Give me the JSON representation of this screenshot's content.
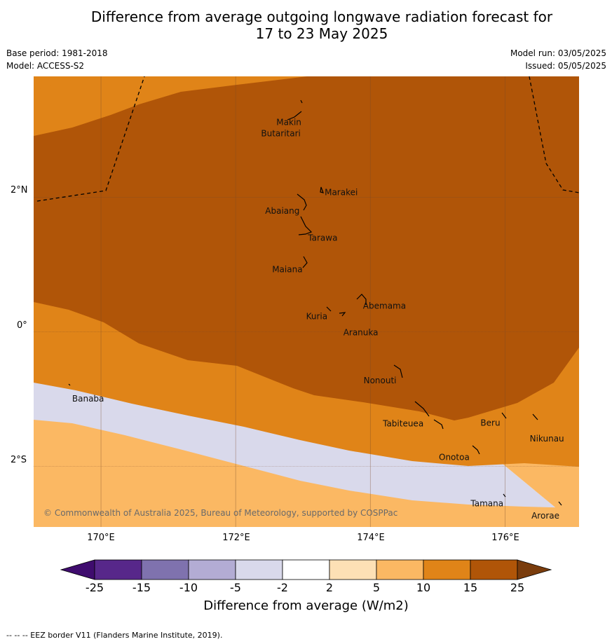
{
  "title": {
    "line1": "Difference from average outgoing longwave radiation forecast for",
    "line2": "17 to 23 May 2025"
  },
  "meta": {
    "base_period": "Base period: 1981-2018",
    "model": "Model: ACCESS-S2",
    "model_run": "Model run: 03/05/2025",
    "issued": "Issued: 05/05/2025"
  },
  "map": {
    "latitude_labels": [
      "2°N",
      "0°",
      "2°S"
    ],
    "longitude_labels": [
      "170°E",
      "172°E",
      "174°E",
      "176°E"
    ],
    "places": [
      {
        "name": "Makin",
        "lon": 172.98,
        "lat": 3.12
      },
      {
        "name": "Butaritari",
        "lon": 172.95,
        "lat": 2.95
      },
      {
        "name": "Marakei",
        "lon": 173.27,
        "lat": 1.99
      },
      {
        "name": "Abaiang",
        "lon": 172.98,
        "lat": 1.82
      },
      {
        "name": "Tarawa",
        "lon": 172.98,
        "lat": 1.4
      },
      {
        "name": "Maiana",
        "lon": 173.0,
        "lat": 0.93
      },
      {
        "name": "Abemama",
        "lon": 173.85,
        "lat": 0.39
      },
      {
        "name": "Kuria",
        "lon": 173.4,
        "lat": 0.23
      },
      {
        "name": "Aranuka",
        "lon": 173.63,
        "lat": 0.17
      },
      {
        "name": "Nonouti",
        "lon": 174.42,
        "lat": -0.67
      },
      {
        "name": "Banaba",
        "lon": 169.53,
        "lat": -0.87
      },
      {
        "name": "Tabiteuea",
        "lon": 174.8,
        "lat": -1.3
      },
      {
        "name": "Beru",
        "lon": 175.98,
        "lat": -1.33
      },
      {
        "name": "Nikunau",
        "lon": 176.45,
        "lat": -1.36
      },
      {
        "name": "Onotoa",
        "lon": 175.57,
        "lat": -1.81
      },
      {
        "name": "Tamana",
        "lon": 175.98,
        "lat": -2.5
      },
      {
        "name": "Arorae",
        "lon": 176.82,
        "lat": -2.64
      }
    ],
    "copyright": "© Commonwealth of Australia 2025, Bureau of Meteorology, supported by COSPPac",
    "colors": {
      "band_25": "#b05508",
      "band_15": "#e08418",
      "band_10": "#fbb863",
      "band_5": "#fde0b5",
      "band_2": "#ffffff",
      "band_m2": "#d9d9eb",
      "band_m5": "#b3acd4",
      "grid": "#7a4a2a",
      "eez": "#000000"
    }
  },
  "colorbar": {
    "title": "Difference from average (W/m2)",
    "tick_labels": [
      "-25",
      "-15",
      "-10",
      "-5",
      "-2",
      "2",
      "5",
      "10",
      "15",
      "25"
    ],
    "colors": [
      "#3f0c6e",
      "#57278a",
      "#7f72ae",
      "#b3acd4",
      "#d9d9eb",
      "#ffffff",
      "#fde0b5",
      "#fbb863",
      "#e08418",
      "#b05508",
      "#7a3c0c"
    ]
  },
  "footer": "--  --  -- EEZ border V11 (Flanders Marine Institute, 2019)."
}
